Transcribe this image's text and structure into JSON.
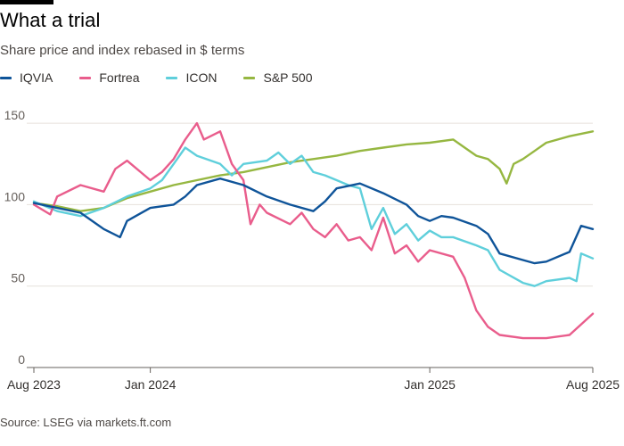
{
  "header": {
    "title": "What a trial",
    "subtitle": "Share price and index rebased in $ terms"
  },
  "source": "Source: LSEG via markets.ft.com",
  "chart_data": {
    "type": "line",
    "title": "What a trial",
    "subtitle": "Share price and index rebased in $ terms",
    "xlabel": "",
    "ylabel": "",
    "ylim": [
      0,
      155
    ],
    "yticks": [
      0,
      50,
      100,
      150
    ],
    "xlim": [
      0,
      24
    ],
    "xticks": [
      {
        "x": 0,
        "label": "Aug 2023"
      },
      {
        "x": 5,
        "label": "Jan 2024"
      },
      {
        "x": 17,
        "label": "Jan 2025"
      },
      {
        "x": 24,
        "label": "Aug 2025"
      }
    ],
    "grid": true,
    "legend": "top-left",
    "x_unit": "months since 1 Aug 2023",
    "series": [
      {
        "name": "IQVIA",
        "color": "#0f5499",
        "x": [
          0,
          1,
          2,
          3,
          3.7,
          4,
          5,
          6,
          6.5,
          7,
          8,
          9,
          10,
          11,
          12,
          12.5,
          13,
          14,
          15,
          16,
          16.5,
          17,
          17.5,
          18,
          19,
          19.5,
          20,
          21,
          21.5,
          22,
          23,
          23.5,
          24
        ],
        "values": [
          101,
          98,
          95,
          85,
          80,
          90,
          98,
          100,
          105,
          112,
          116,
          112,
          105,
          100,
          96,
          102,
          110,
          113,
          107,
          100,
          93,
          90,
          93,
          92,
          87,
          82,
          70,
          66,
          64,
          65,
          71,
          87,
          85
        ]
      },
      {
        "name": "Fortrea",
        "color": "#e95d8c",
        "x": [
          0,
          0.7,
          1,
          2,
          3,
          3.5,
          4,
          5,
          5.5,
          6,
          6.5,
          7,
          7.3,
          8,
          8.5,
          9,
          9.3,
          9.7,
          10,
          11,
          11.5,
          12,
          12.5,
          13,
          13.5,
          14,
          14.5,
          15,
          15.5,
          16,
          16.5,
          17,
          18,
          18.5,
          19,
          19.5,
          20,
          21,
          22,
          23,
          24
        ],
        "values": [
          100,
          94,
          105,
          112,
          108,
          122,
          127,
          115,
          120,
          128,
          140,
          150,
          140,
          145,
          125,
          115,
          88,
          100,
          95,
          88,
          95,
          85,
          80,
          88,
          78,
          80,
          72,
          92,
          70,
          75,
          65,
          72,
          68,
          55,
          35,
          25,
          20,
          18,
          18,
          20,
          33
        ]
      },
      {
        "name": "ICON",
        "color": "#5fcfdb",
        "x": [
          0,
          1,
          2,
          3,
          4,
          5,
          5.5,
          6,
          6.5,
          7,
          8,
          8.5,
          9,
          10,
          10.5,
          11,
          11.5,
          12,
          12.5,
          13,
          13.5,
          14,
          14.5,
          15,
          15.5,
          16,
          16.5,
          17,
          17.5,
          18,
          19,
          19.5,
          20,
          21,
          21.5,
          22,
          23,
          23.3,
          23.5,
          24
        ],
        "values": [
          102,
          96,
          93,
          98,
          105,
          110,
          115,
          125,
          135,
          130,
          125,
          118,
          125,
          127,
          132,
          125,
          130,
          120,
          118,
          115,
          112,
          110,
          85,
          98,
          82,
          88,
          78,
          84,
          80,
          80,
          75,
          72,
          60,
          52,
          50,
          53,
          55,
          53,
          70,
          67
        ]
      },
      {
        "name": "S&P 500",
        "color": "#96b741",
        "x": [
          0,
          1,
          2,
          3,
          4,
          5,
          6,
          7,
          8,
          9,
          10,
          11,
          12,
          13,
          14,
          15,
          16,
          17,
          18,
          18.5,
          19,
          19.5,
          20,
          20.3,
          20.6,
          21,
          21.5,
          22,
          23,
          24
        ],
        "values": [
          101,
          99,
          96,
          98,
          104,
          108,
          112,
          115,
          118,
          120,
          123,
          126,
          128,
          130,
          133,
          135,
          137,
          138,
          140,
          135,
          130,
          128,
          122,
          113,
          125,
          128,
          133,
          138,
          142,
          145
        ]
      }
    ]
  }
}
